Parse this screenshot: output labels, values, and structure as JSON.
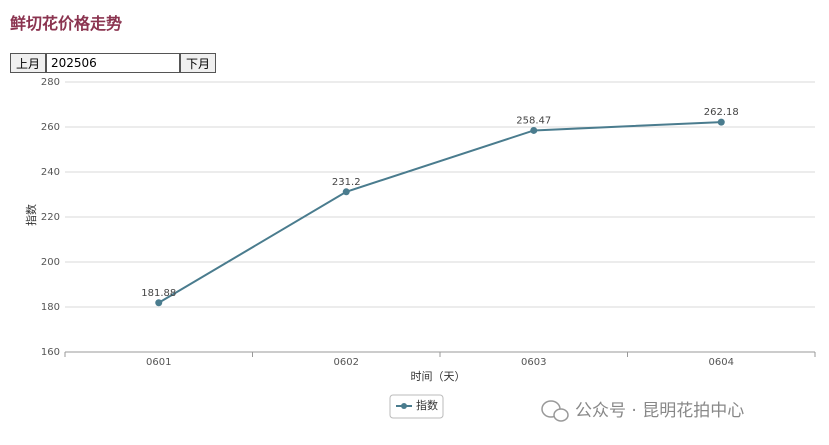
{
  "header": {
    "title": "鲜切花价格走势"
  },
  "controls": {
    "prev": "上月",
    "month": "202506",
    "next": "下月"
  },
  "chart_data": {
    "type": "line",
    "categories": [
      "0601",
      "0602",
      "0603",
      "0604"
    ],
    "series": [
      {
        "name": "指数",
        "color": "#4a7c8e",
        "values": [
          181.88,
          231.2,
          258.47,
          262.18
        ]
      }
    ],
    "xlabel": "时间（天）",
    "ylabel": "指数",
    "ylim": [
      160,
      280
    ],
    "yticks": [
      160,
      180,
      200,
      220,
      240,
      260,
      280
    ],
    "grid": true
  },
  "watermark": "公众号 · 昆明花拍中心"
}
